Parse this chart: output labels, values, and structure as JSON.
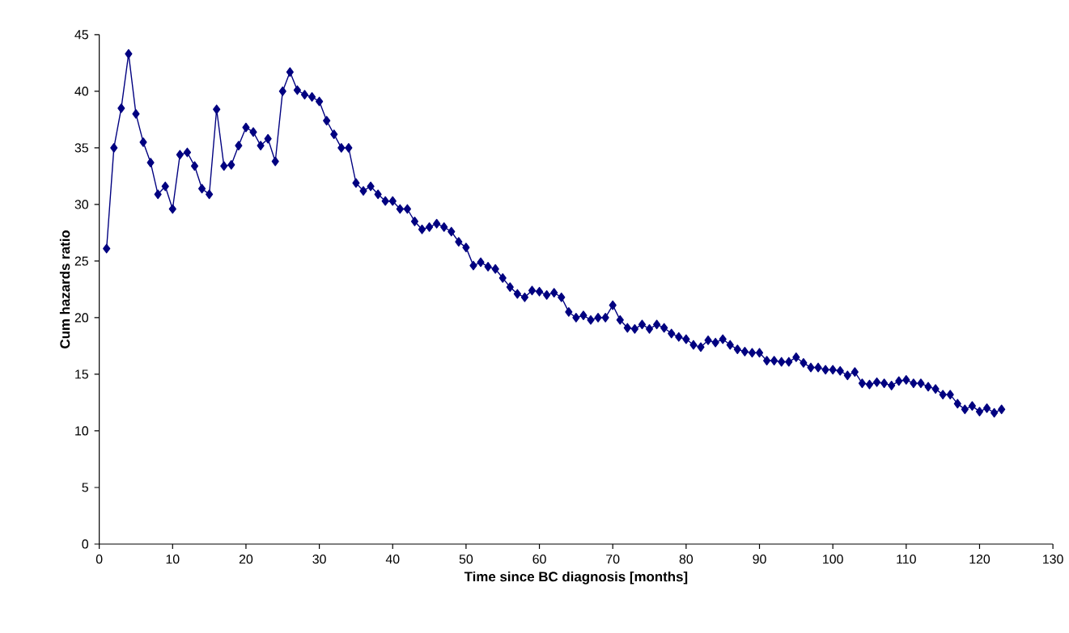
{
  "chart_data": {
    "type": "line",
    "xlabel": "Time since BC diagnosis [months]",
    "ylabel": "Cum hazards ratio",
    "x": [
      1,
      2,
      3,
      4,
      5,
      6,
      7,
      8,
      9,
      10,
      11,
      12,
      13,
      14,
      15,
      16,
      17,
      18,
      19,
      20,
      21,
      22,
      23,
      24,
      25,
      26,
      27,
      28,
      29,
      30,
      31,
      32,
      33,
      34,
      35,
      36,
      37,
      38,
      39,
      40,
      41,
      42,
      43,
      44,
      45,
      46,
      47,
      48,
      49,
      50,
      51,
      52,
      53,
      54,
      55,
      56,
      57,
      58,
      59,
      60,
      61,
      62,
      63,
      64,
      65,
      66,
      67,
      68,
      69,
      70,
      71,
      72,
      73,
      74,
      75,
      76,
      77,
      78,
      79,
      80,
      81,
      82,
      83,
      84,
      85,
      86,
      87,
      88,
      89,
      90,
      91,
      92,
      93,
      94,
      95,
      96,
      97,
      98,
      99,
      100,
      101,
      102,
      103,
      104,
      105,
      106,
      107,
      108,
      109,
      110,
      111,
      112,
      113,
      114,
      115,
      116,
      117,
      118,
      119,
      120,
      121,
      122,
      123
    ],
    "values": [
      26.1,
      35.0,
      38.5,
      43.3,
      38.0,
      35.5,
      33.7,
      30.9,
      31.6,
      29.6,
      34.4,
      34.6,
      33.4,
      31.4,
      30.9,
      38.4,
      33.4,
      33.5,
      35.2,
      36.8,
      36.4,
      35.2,
      35.8,
      33.8,
      40.0,
      41.7,
      40.1,
      39.7,
      39.5,
      39.1,
      37.4,
      36.2,
      35.0,
      35.0,
      31.9,
      31.2,
      31.6,
      30.9,
      30.3,
      30.3,
      29.6,
      29.6,
      28.5,
      27.8,
      28.0,
      28.3,
      28.0,
      27.6,
      26.7,
      26.2,
      24.6,
      24.9,
      24.5,
      24.3,
      23.5,
      22.7,
      22.1,
      21.8,
      22.4,
      22.3,
      22.0,
      22.2,
      21.8,
      20.5,
      20.0,
      20.2,
      19.8,
      20.0,
      20.0,
      21.1,
      19.8,
      19.1,
      19.0,
      19.4,
      19.0,
      19.4,
      19.1,
      18.6,
      18.3,
      18.1,
      17.6,
      17.4,
      18.0,
      17.8,
      18.1,
      17.6,
      17.2,
      17.0,
      16.9,
      16.9,
      16.2,
      16.2,
      16.1,
      16.1,
      16.5,
      16.0,
      15.6,
      15.6,
      15.4,
      15.4,
      15.3,
      14.9,
      15.2,
      14.2,
      14.1,
      14.3,
      14.2,
      14.0,
      14.4,
      14.5,
      14.2,
      14.2,
      13.9,
      13.7,
      13.2,
      13.2,
      12.4,
      11.9,
      12.2,
      11.7,
      12.0,
      11.6,
      11.9
    ],
    "color": "#000080",
    "marker": "diamond",
    "line_style": "solid",
    "xlim": [
      0,
      130
    ],
    "ylim": [
      0,
      45
    ],
    "xticks": [
      0,
      10,
      20,
      30,
      40,
      50,
      60,
      70,
      80,
      90,
      100,
      110,
      120,
      130
    ],
    "yticks": [
      0,
      5,
      10,
      15,
      20,
      25,
      30,
      35,
      40,
      45
    ],
    "grid": false
  }
}
